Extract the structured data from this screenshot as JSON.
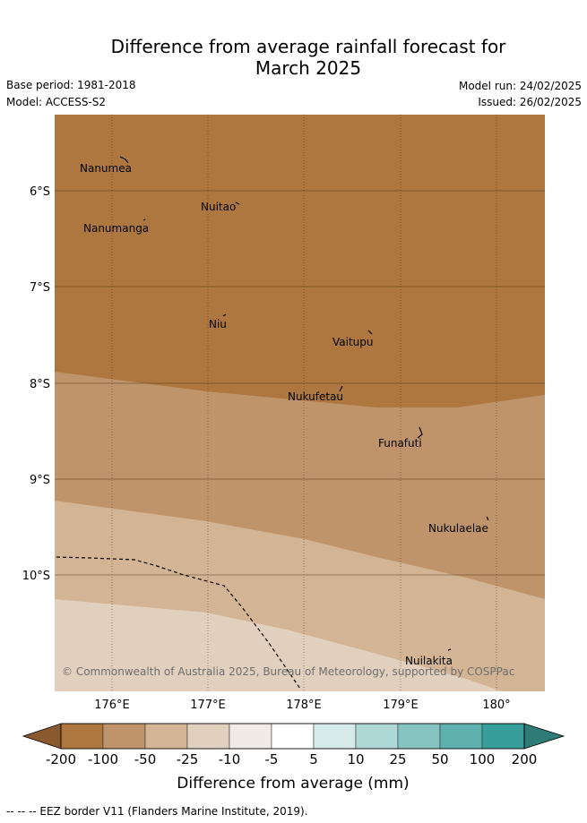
{
  "header": {
    "title_line1": "Difference from average rainfall forecast for",
    "title_line2": "March 2025",
    "base_period": "Base period: 1981-2018",
    "model": "Model: ACCESS-S2",
    "model_run": "Model run: 24/02/2025",
    "issued": "Issued: 26/02/2025"
  },
  "map": {
    "lat_labels": [
      "6°S",
      "7°S",
      "8°S",
      "9°S",
      "10°S"
    ],
    "lon_labels": [
      "176°E",
      "177°E",
      "178°E",
      "179°E",
      "180°"
    ],
    "places": [
      "Nanumea",
      "Nuitao",
      "Nanumanga",
      "Niu",
      "Vaitupu",
      "Nukufetau",
      "Funafuti",
      "Nukulaelae",
      "Nuilakita"
    ],
    "copyright": "© Commonwealth of Australia 2025, Bureau of Meteorology, supported by COSPPac",
    "colors": {
      "band_lt_minus100": "#ad773f",
      "band_minus100_minus50": "#c0946a",
      "band_minus50_minus25": "#d3b495",
      "band_minus25_minus10": "#e2d0be"
    }
  },
  "legend": {
    "ticks": [
      "-200",
      "-100",
      "-50",
      "-25",
      "-10",
      "-5",
      "5",
      "10",
      "25",
      "50",
      "100",
      "200"
    ],
    "colors": [
      "#ad773f",
      "#c0946a",
      "#d3b495",
      "#e2d0be",
      "#f0ebe7",
      "#ffffff",
      "#d5ebea",
      "#aed8d6",
      "#86c4c2",
      "#5eb1ae",
      "#379e99"
    ],
    "under_color": "#8a5a2e",
    "over_color": "#2e7b78",
    "label": "Difference from average (mm)"
  },
  "footer": {
    "text": "-- -- -- EEZ border V11 (Flanders Marine Institute, 2019)."
  }
}
